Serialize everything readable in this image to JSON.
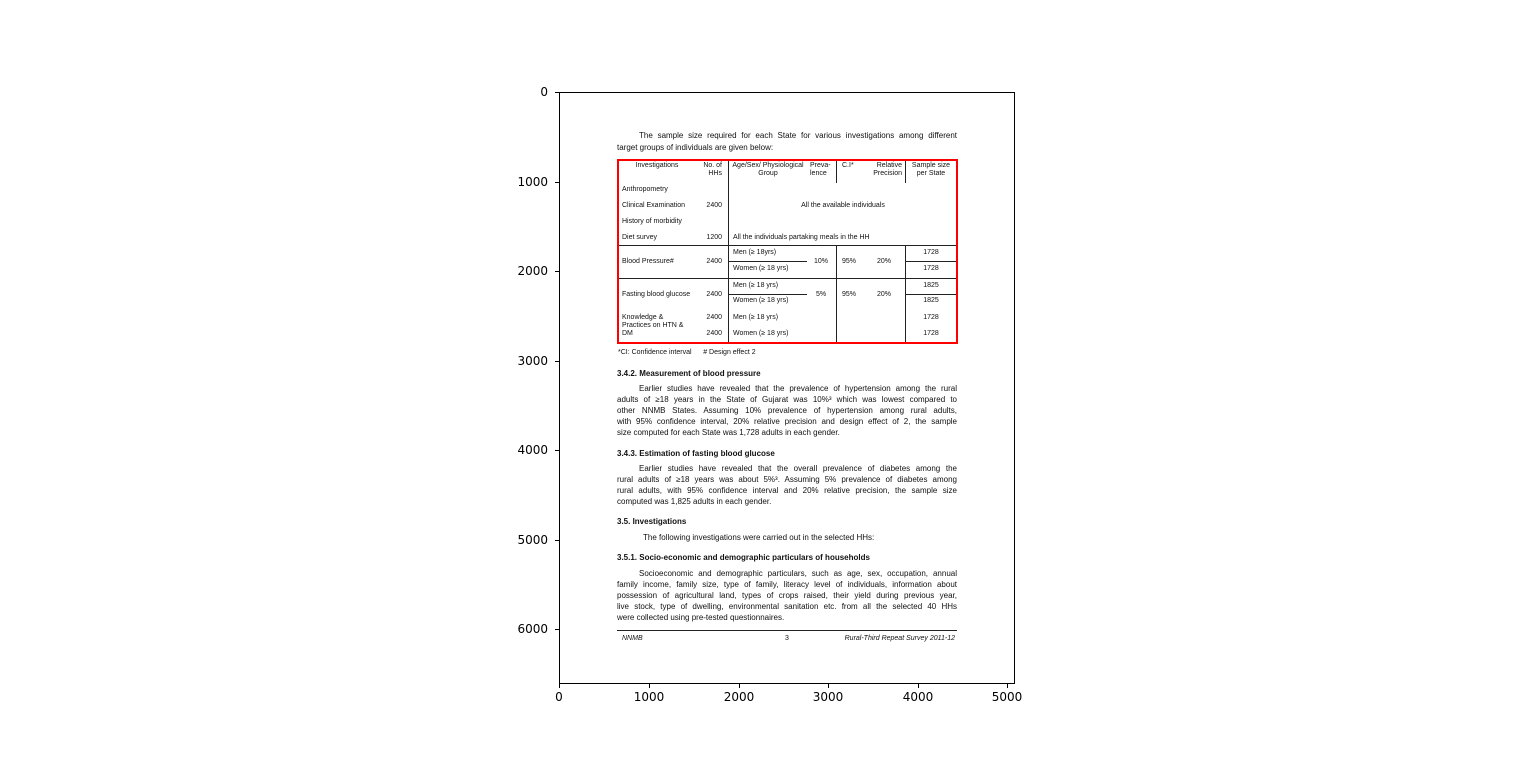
{
  "axes": {
    "x_ticks": [
      "0",
      "1000",
      "2000",
      "3000",
      "4000",
      "5000"
    ],
    "y_ticks": [
      "0",
      "1000",
      "2000",
      "3000",
      "4000",
      "5000",
      "6000"
    ],
    "highlight_box_color": "#ff0000"
  },
  "document": {
    "intro": [
      "The sample size required for each State for various investigations among different",
      "target groups of individuals are given below:"
    ],
    "table": {
      "headers": {
        "investigations": "Investigations",
        "hhs": "No. of HHs",
        "group": "Age/Sex/ Physiological Group",
        "prevalence": "Preva- lence",
        "ci": "C.I*",
        "precision": "Relative Precision",
        "sample": "Sample size per State"
      },
      "rows": [
        {
          "inv": "Anthropometry",
          "hhs": "",
          "group": ""
        },
        {
          "inv": "Clinical Examination",
          "hhs": "2400",
          "group": "All the available individuals"
        },
        {
          "inv": "History of morbidity",
          "hhs": "",
          "group": ""
        },
        {
          "inv": "Diet survey",
          "hhs": "1200",
          "group": "All the individuals partaking meals in the HH"
        }
      ],
      "bp": {
        "inv": "Blood Pressure#",
        "hhs": "2400",
        "men": "Men (≥ 18yrs)",
        "women": "Women (≥ 18 yrs)",
        "prevalence": "10%",
        "ci": "95%",
        "precision": "20%",
        "men_n": "1728",
        "women_n": "1728"
      },
      "fbg": {
        "inv": "Fasting blood glucose",
        "hhs": "2400",
        "men": "Men (≥ 18 yrs)",
        "women": "Women (≥ 18 yrs)",
        "prevalence": "5%",
        "ci": "95%",
        "precision": "20%",
        "men_n": "1825",
        "women_n": "1825"
      },
      "kp": {
        "inv1": "Knowledge &",
        "inv2": "Practices on HTN &",
        "inv3": "DM",
        "hhs1": "2400",
        "hhs2": "2400",
        "men": "Men (≥ 18 yrs)",
        "women": "Women (≥ 18 yrs)",
        "men_n": "1728",
        "women_n": "1728"
      },
      "footnote": "*CI: Confidence interval      # Design effect 2"
    },
    "s342": {
      "heading": "3.4.2. Measurement of blood pressure",
      "lines": [
        "Earlier studies have revealed that the prevalence of hypertension among the rural",
        "adults of ≥18 years in the State of Gujarat was 10%³ which was lowest compared to",
        "other NNMB States. Assuming 10% prevalence of hypertension among rural adults,",
        "with 95% confidence interval, 20% relative precision and design effect of 2, the sample",
        "size computed for each State was 1,728 adults in each gender."
      ]
    },
    "s343": {
      "heading": "3.4.3. Estimation of fasting blood glucose",
      "lines": [
        "Earlier studies have revealed that the overall prevalence of diabetes among the",
        "rural adults of ≥18 years was about 5%³. Assuming 5% prevalence of diabetes among",
        "rural adults, with 95% confidence interval and 20% relative precision, the sample size",
        "computed was 1,825 adults in each gender."
      ]
    },
    "s35": {
      "heading": "3.5. Investigations",
      "line": "The following investigations were carried out in the selected HHs:"
    },
    "s351": {
      "heading": "3.5.1. Socio-economic and demographic particulars of households",
      "lines": [
        "Socioeconomic and demographic particulars, such as age, sex, occupation, annual",
        "family income, family size, type of family, literacy level of individuals, information about",
        "possession of agricultural land, types of crops raised, their yield during previous year,",
        "live stock, type of dwelling, environmental sanitation etc. from all the selected 40 HHs",
        "were collected using pre-tested questionnaires."
      ]
    },
    "footer": {
      "left": "NNMB",
      "center": "3",
      "right": "Rural-Third Repeat Survey 2011-12"
    }
  }
}
